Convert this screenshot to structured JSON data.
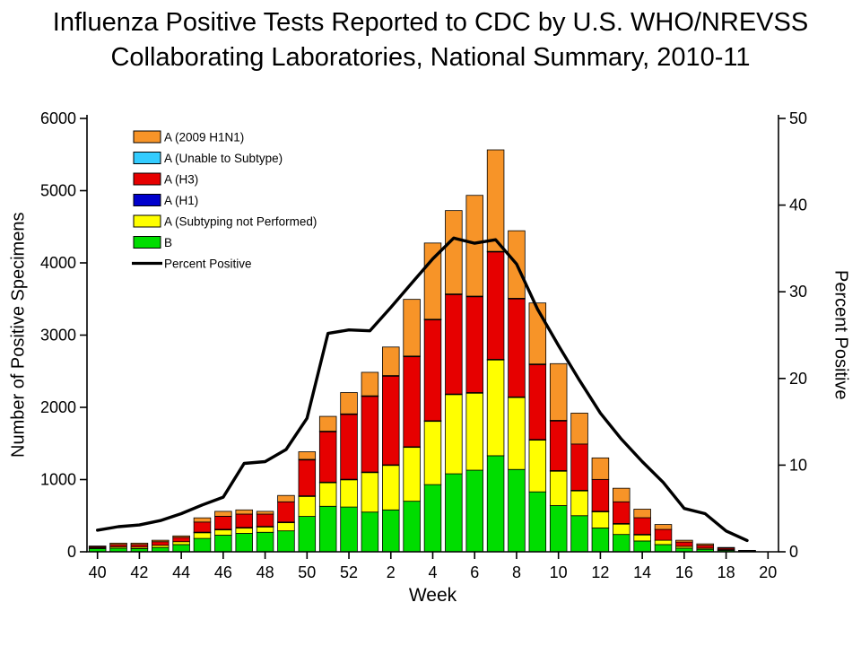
{
  "chart_data": {
    "type": "bar",
    "subtype": "stacked-bar-with-line",
    "title_line1": "Influenza Positive Tests Reported to CDC by U.S. WHO/NREVSS",
    "title_line2": "Collaborating Laboratories, National Summary, 2010-11",
    "xlabel": "Week",
    "ylabel_left": "Number of Positive Specimens",
    "ylabel_right": "Percent Positive",
    "ylim_left": [
      0,
      6000
    ],
    "ylim_right": [
      0,
      50
    ],
    "y_left_ticks": [
      0,
      1000,
      2000,
      3000,
      4000,
      5000,
      6000
    ],
    "y_right_ticks": [
      0,
      10,
      20,
      30,
      40,
      50
    ],
    "x_tick_labels": [
      "40",
      "42",
      "44",
      "46",
      "48",
      "50",
      "52",
      "2",
      "4",
      "6",
      "8",
      "10",
      "12",
      "14",
      "16",
      "18",
      "20"
    ],
    "weeks": [
      "40",
      "41",
      "42",
      "43",
      "44",
      "45",
      "46",
      "47",
      "48",
      "49",
      "50",
      "51",
      "52",
      "1",
      "2",
      "3",
      "4",
      "5",
      "6",
      "7",
      "8",
      "9",
      "10",
      "11",
      "12",
      "13",
      "14",
      "15",
      "16",
      "17",
      "18",
      "19",
      "20"
    ],
    "series": [
      {
        "name": "B",
        "color": "#00dd00",
        "values": [
          45,
          50,
          45,
          60,
          100,
          185,
          230,
          255,
          270,
          290,
          490,
          630,
          620,
          550,
          580,
          700,
          930,
          1080,
          1130,
          1330,
          1140,
          830,
          640,
          500,
          330,
          240,
          150,
          100,
          50,
          35,
          20,
          8,
          0
        ]
      },
      {
        "name": "A (Subtyping not Performed)",
        "color": "#ffff00",
        "values": [
          10,
          20,
          20,
          30,
          40,
          85,
          80,
          80,
          80,
          120,
          280,
          330,
          380,
          550,
          620,
          750,
          880,
          1100,
          1070,
          1330,
          1000,
          720,
          480,
          350,
          230,
          150,
          90,
          60,
          25,
          15,
          10,
          3,
          0
        ]
      },
      {
        "name": "A (H1)",
        "color": "#0000cc",
        "values": [
          0,
          0,
          0,
          0,
          0,
          2,
          2,
          2,
          2,
          2,
          5,
          5,
          5,
          5,
          5,
          5,
          5,
          5,
          5,
          5,
          5,
          5,
          5,
          2,
          2,
          2,
          2,
          0,
          0,
          0,
          0,
          0,
          0
        ]
      },
      {
        "name": "A (H3)",
        "color": "#e60000",
        "values": [
          20,
          30,
          35,
          50,
          60,
          140,
          180,
          185,
          170,
          280,
          500,
          700,
          900,
          1050,
          1230,
          1250,
          1400,
          1380,
          1330,
          1490,
          1360,
          1040,
          690,
          640,
          440,
          300,
          230,
          150,
          60,
          40,
          20,
          6,
          0
        ]
      },
      {
        "name": "A (Unable to Subtype)",
        "color": "#33ccff",
        "values": [
          0,
          0,
          0,
          0,
          0,
          0,
          0,
          0,
          0,
          0,
          5,
          5,
          5,
          5,
          5,
          5,
          5,
          5,
          5,
          5,
          5,
          5,
          5,
          0,
          0,
          0,
          0,
          0,
          0,
          0,
          0,
          0,
          0
        ]
      },
      {
        "name": "A (2009 H1N1)",
        "color": "#f79428",
        "values": [
          5,
          20,
          20,
          20,
          20,
          58,
          68,
          58,
          38,
          88,
          105,
          205,
          295,
          325,
          395,
          785,
          1055,
          1155,
          1395,
          1405,
          935,
          845,
          785,
          428,
          298,
          188,
          118,
          68,
          25,
          20,
          10,
          3,
          0
        ]
      }
    ],
    "line": {
      "name": "Percent Positive",
      "color": "#000000",
      "values": [
        2.5,
        2.9,
        3.1,
        3.6,
        4.4,
        5.4,
        6.3,
        10.2,
        10.4,
        11.8,
        15.4,
        25.2,
        25.6,
        25.5,
        28.2,
        31.0,
        33.8,
        36.2,
        35.6,
        36.0,
        33.2,
        28.0,
        23.8,
        19.8,
        16.0,
        13.0,
        10.4,
        8.0,
        5.0,
        4.4,
        2.4,
        1.3,
        null
      ]
    },
    "legend": [
      {
        "label": "A (2009 H1N1)",
        "color": "#f79428",
        "type": "box"
      },
      {
        "label": "A (Unable to Subtype)",
        "color": "#33ccff",
        "type": "box"
      },
      {
        "label": "A (H3)",
        "color": "#e60000",
        "type": "box"
      },
      {
        "label": "A (H1)",
        "color": "#0000cc",
        "type": "box"
      },
      {
        "label": "A (Subtyping not Performed)",
        "color": "#ffff00",
        "type": "box"
      },
      {
        "label": "B",
        "color": "#00dd00",
        "type": "box"
      },
      {
        "label": "Percent Positive",
        "color": "#000000",
        "type": "line"
      }
    ],
    "grid": false,
    "legend_position": "top-left-inside"
  }
}
